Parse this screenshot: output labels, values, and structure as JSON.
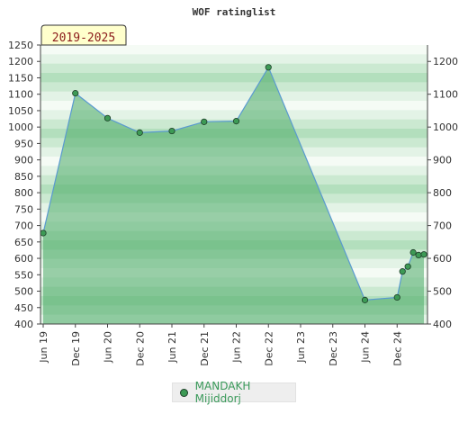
{
  "chart_data": {
    "type": "line",
    "title": "WOF ratinglist",
    "badge": "2019-2025",
    "x_tick_labels": [
      "Jun 19",
      "Dec 19",
      "Jun 20",
      "Dec 20",
      "Jun 21",
      "Dec 21",
      "Jun 22",
      "Dec 22",
      "Jun 23",
      "Dec 23",
      "Jun 24",
      "Dec 24"
    ],
    "y_left_ticks": [
      400,
      450,
      500,
      550,
      600,
      650,
      700,
      750,
      800,
      850,
      900,
      950,
      1000,
      1050,
      1100,
      1150,
      1200,
      1250
    ],
    "y_right_ticks": [
      400,
      500,
      600,
      700,
      800,
      900,
      1000,
      1100,
      1200
    ],
    "ylim": [
      400,
      1250
    ],
    "series": [
      {
        "name": "MANDAKH Mijiddorj",
        "color": "#3d9a55",
        "points": [
          {
            "x": 0,
            "y": 677
          },
          {
            "x": 6,
            "y": 1103
          },
          {
            "x": 12,
            "y": 1027
          },
          {
            "x": 18,
            "y": 983
          },
          {
            "x": 24,
            "y": 988
          },
          {
            "x": 30,
            "y": 1016
          },
          {
            "x": 36,
            "y": 1018
          },
          {
            "x": 42,
            "y": 1182
          },
          {
            "x": 60,
            "y": 473
          },
          {
            "x": 66,
            "y": 481
          },
          {
            "x": 67,
            "y": 560
          },
          {
            "x": 68,
            "y": 575
          },
          {
            "x": 69,
            "y": 618
          },
          {
            "x": 70,
            "y": 610
          },
          {
            "x": 71,
            "y": 612
          }
        ]
      }
    ]
  }
}
